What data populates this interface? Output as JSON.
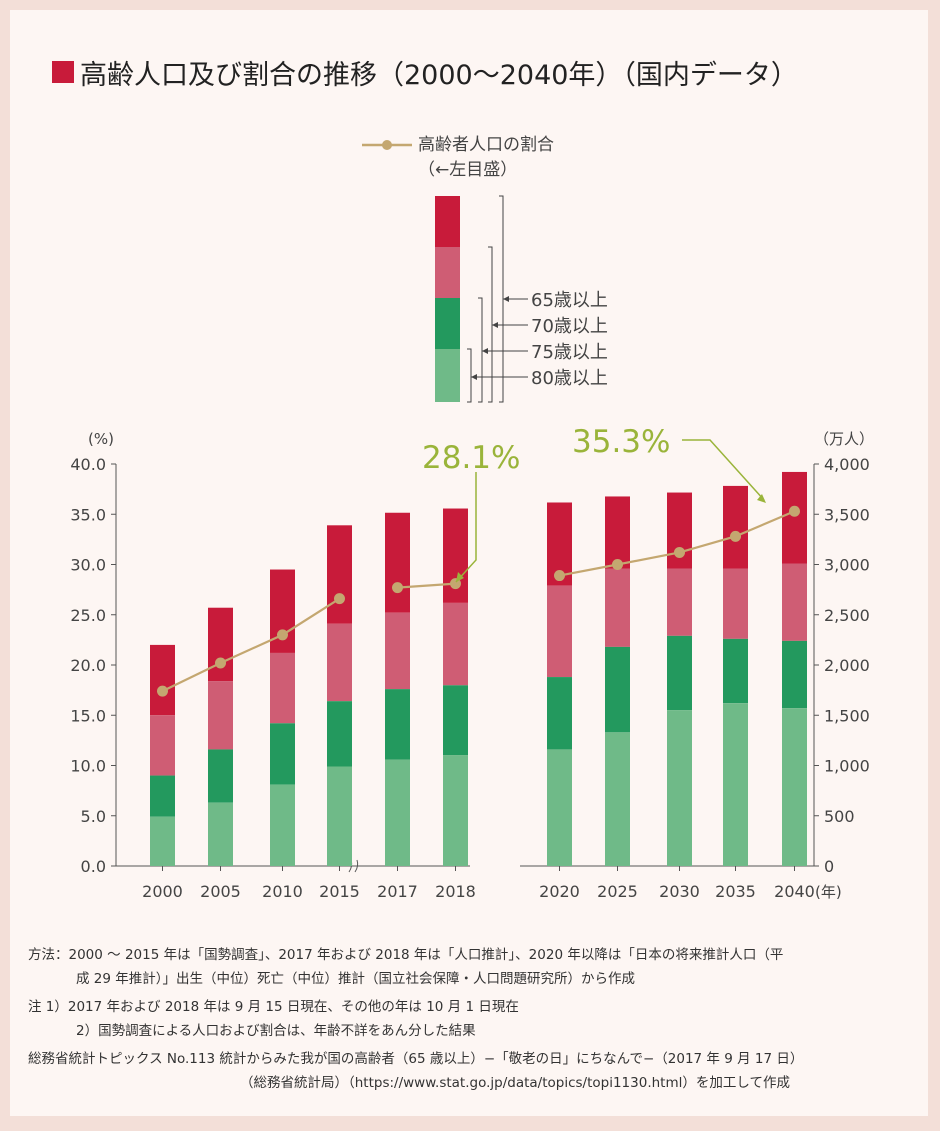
{
  "title": "高齢人口及び割合の推移（2000〜2040年）（国内データ）",
  "legend": {
    "line_label": "高齢者人口の割合",
    "line_axis_note": "（←左目盛）",
    "bar_labels": [
      "65歳以上",
      "70歳以上",
      "75歳以上",
      "80歳以上"
    ]
  },
  "axes": {
    "left_unit": "(%)",
    "right_unit": "（万人）",
    "x_unit": "(年)",
    "left_ticks": [
      "0.0",
      "5.0",
      "10.0",
      "15.0",
      "20.0",
      "25.0",
      "30.0",
      "35.0",
      "40.0"
    ],
    "right_ticks": [
      "0",
      "500",
      "1,000",
      "1,500",
      "2,000",
      "2,500",
      "3,000",
      "3,500",
      "4,000"
    ]
  },
  "callouts": {
    "y2018": "28.1%",
    "y2040": "35.3%"
  },
  "colors": {
    "age65": "#c81b3a",
    "age70": "#cf5d74",
    "age75": "#23995e",
    "age80": "#6fba88",
    "line": "#c4a770",
    "callout": "#9ab43a"
  },
  "chart_data": {
    "type": "bar",
    "categories": [
      "2000",
      "2005",
      "2010",
      "2015",
      "2017",
      "2018",
      "2020",
      "2025",
      "2030",
      "2035",
      "2040"
    ],
    "series": [
      {
        "name": "65歳以上",
        "values": [
          2200,
          2570,
          2950,
          3390,
          3515,
          3557,
          3617,
          3677,
          3716,
          3782,
          3921
        ]
      },
      {
        "name": "70歳以上",
        "values": [
          1500,
          1840,
          2120,
          2410,
          2520,
          2618,
          2790,
          2960,
          2960,
          2960,
          3010
        ]
      },
      {
        "name": "75歳以上",
        "values": [
          900,
          1160,
          1420,
          1640,
          1760,
          1798,
          1880,
          2180,
          2290,
          2260,
          2240
        ]
      },
      {
        "name": "80歳以上",
        "values": [
          490,
          630,
          810,
          990,
          1060,
          1104,
          1160,
          1330,
          1550,
          1620,
          1570
        ]
      },
      {
        "name": "高齢者人口の割合",
        "values": [
          17.4,
          20.2,
          23.0,
          26.6,
          27.7,
          28.1,
          28.9,
          30.0,
          31.2,
          32.8,
          35.3
        ]
      }
    ],
    "ylim_left": [
      0,
      40
    ],
    "ylim_right": [
      0,
      4000
    ]
  },
  "notes": {
    "method_label": "方法：",
    "method_1": "2000 〜 2015 年は「国勢調査」、2017 年および 2018 年は「人口推計」、2020 年以降は「日本の将来推計人口（平",
    "method_2": "成 29 年推計）」出生（中位）死亡（中位）推計（国立社会保障・人口問題研究所）から作成",
    "note_1": "注 1）2017 年および 2018 年は 9 月 15 日現在、その他の年は 10 月 1 日現在",
    "note_2": "2）国勢調査による人口および割合は、年齢不詳をあん分した結果",
    "source_1": "総務省統計トピックス No.113 統計からみた我が国の高齢者（65 歳以上）−「敬老の日」にちなんで−（2017 年 9 月 17 日）",
    "source_2": "（総務省統計局）（https://www.stat.go.jp/data/topics/topi1130.html）を加工して作成"
  }
}
